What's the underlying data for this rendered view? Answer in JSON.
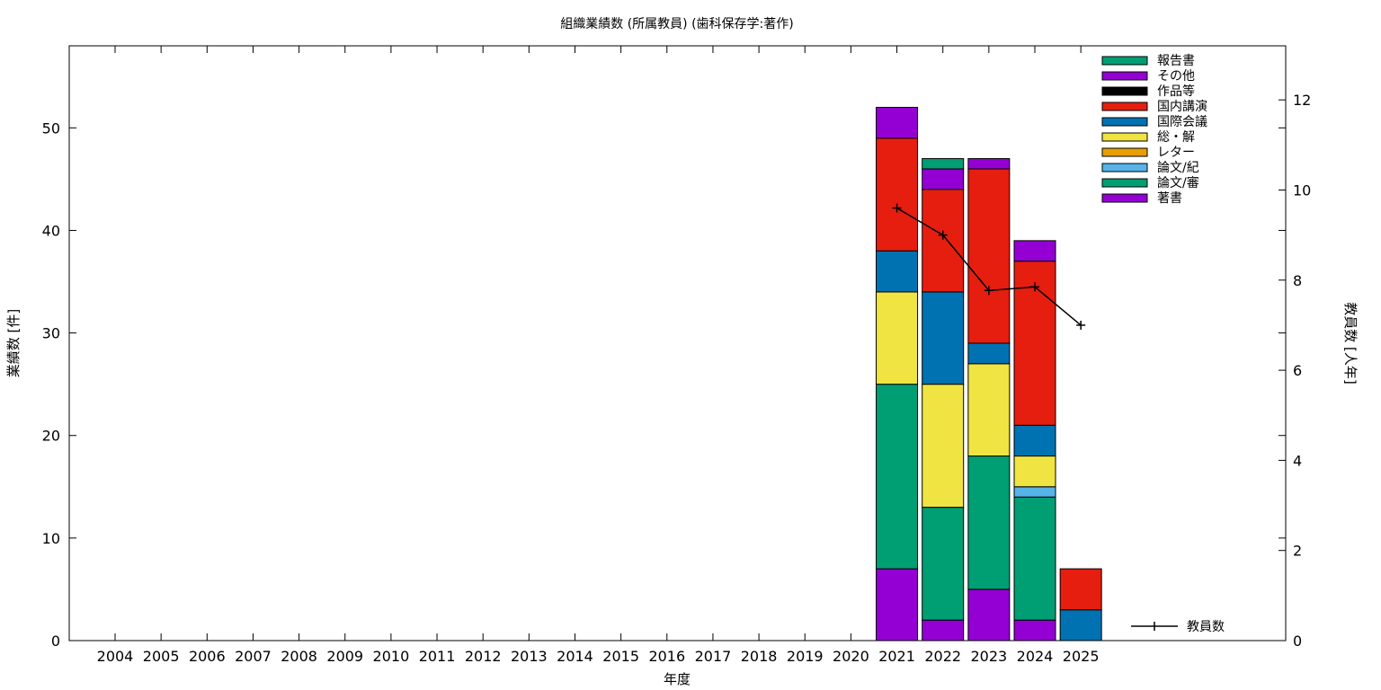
{
  "chart_data": {
    "type": "bar",
    "stacked": true,
    "title": "組織業績数 (所属教員) (歯科保存学:著作)",
    "xlabel": "年度",
    "ylabel": "業績数 [件]",
    "y2label": "教員数 [人年]",
    "categories": [
      "2004",
      "2005",
      "2006",
      "2007",
      "2008",
      "2009",
      "2010",
      "2011",
      "2012",
      "2013",
      "2014",
      "2015",
      "2016",
      "2017",
      "2018",
      "2019",
      "2020",
      "2021",
      "2022",
      "2023",
      "2024",
      "2025"
    ],
    "ylim": [
      0,
      58
    ],
    "y2lim": [
      0,
      13.2
    ],
    "yticks": [
      0,
      10,
      20,
      30,
      40,
      50
    ],
    "y2ticks": [
      0,
      2,
      4,
      6,
      8,
      10,
      12
    ],
    "legend_position": "top-right",
    "series": [
      {
        "name": "著書",
        "color": "#9400d3",
        "values": [
          0,
          0,
          0,
          0,
          0,
          0,
          0,
          0,
          0,
          0,
          0,
          0,
          0,
          0,
          0,
          0,
          0,
          7,
          2,
          5,
          2,
          0
        ]
      },
      {
        "name": "論文/審",
        "color": "#009e73",
        "values": [
          0,
          0,
          0,
          0,
          0,
          0,
          0,
          0,
          0,
          0,
          0,
          0,
          0,
          0,
          0,
          0,
          0,
          18,
          11,
          13,
          12,
          0
        ]
      },
      {
        "name": "論文/紀",
        "color": "#56b4e9",
        "values": [
          0,
          0,
          0,
          0,
          0,
          0,
          0,
          0,
          0,
          0,
          0,
          0,
          0,
          0,
          0,
          0,
          0,
          0,
          0,
          0,
          1,
          0
        ]
      },
      {
        "name": "レター",
        "color": "#e69f00",
        "values": [
          0,
          0,
          0,
          0,
          0,
          0,
          0,
          0,
          0,
          0,
          0,
          0,
          0,
          0,
          0,
          0,
          0,
          0,
          0,
          0,
          0,
          0
        ]
      },
      {
        "name": "総・解",
        "color": "#f0e442",
        "values": [
          0,
          0,
          0,
          0,
          0,
          0,
          0,
          0,
          0,
          0,
          0,
          0,
          0,
          0,
          0,
          0,
          0,
          9,
          12,
          9,
          3,
          0
        ]
      },
      {
        "name": "国際会議",
        "color": "#0072b2",
        "values": [
          0,
          0,
          0,
          0,
          0,
          0,
          0,
          0,
          0,
          0,
          0,
          0,
          0,
          0,
          0,
          0,
          0,
          4,
          9,
          2,
          3,
          3
        ]
      },
      {
        "name": "国内講演",
        "color": "#e51e10",
        "values": [
          0,
          0,
          0,
          0,
          0,
          0,
          0,
          0,
          0,
          0,
          0,
          0,
          0,
          0,
          0,
          0,
          0,
          11,
          10,
          17,
          16,
          4
        ]
      },
      {
        "name": "作品等",
        "color": "#000000",
        "values": [
          0,
          0,
          0,
          0,
          0,
          0,
          0,
          0,
          0,
          0,
          0,
          0,
          0,
          0,
          0,
          0,
          0,
          0,
          0,
          0,
          0,
          0
        ]
      },
      {
        "name": "その他",
        "color": "#9400d3",
        "values": [
          0,
          0,
          0,
          0,
          0,
          0,
          0,
          0,
          0,
          0,
          0,
          0,
          0,
          0,
          0,
          0,
          0,
          3,
          2,
          1,
          2,
          0
        ]
      },
      {
        "name": "報告書",
        "color": "#009e73",
        "values": [
          0,
          0,
          0,
          0,
          0,
          0,
          0,
          0,
          0,
          0,
          0,
          0,
          0,
          0,
          0,
          0,
          0,
          0,
          1,
          0,
          0,
          0
        ]
      }
    ],
    "line_series": {
      "name": "教員数",
      "axis": "y2",
      "color": "#000000",
      "categories": [
        "2021",
        "2022",
        "2023",
        "2024",
        "2025"
      ],
      "values": [
        9.6,
        9.0,
        7.77,
        7.85,
        7.0
      ]
    }
  }
}
